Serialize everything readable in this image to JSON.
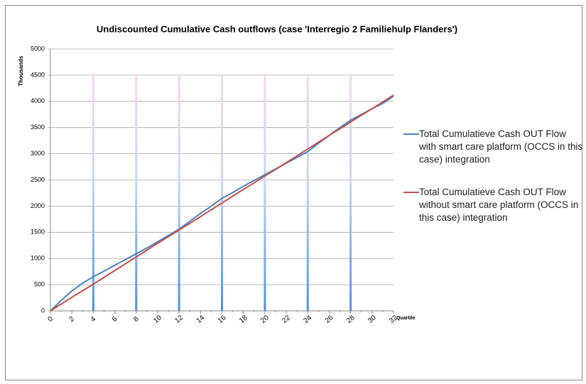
{
  "chart_data": {
    "type": "line",
    "title": "Undiscounted Cumulative Cash outflows (case 'Interregio 2 Familiehulp Flanders')",
    "y_label": "Thousands",
    "x_label": "Quartile",
    "x": [
      0,
      1,
      2,
      3,
      4,
      5,
      6,
      7,
      8,
      9,
      10,
      11,
      12,
      13,
      14,
      15,
      16,
      17,
      18,
      19,
      20,
      21,
      22,
      23,
      24,
      25,
      26,
      27,
      28,
      29,
      30,
      31,
      32
    ],
    "series": [
      {
        "name": "Total Cumulatieve Cash OUT Flow with smart care platform (OCCS in this case) integration",
        "color": "#4f81bd",
        "values": [
          0,
          200,
          380,
          530,
          650,
          760,
          870,
          980,
          1090,
          1200,
          1320,
          1440,
          1560,
          1710,
          1860,
          2000,
          2150,
          2260,
          2380,
          2490,
          2600,
          2710,
          2820,
          2930,
          3040,
          3200,
          3350,
          3500,
          3640,
          3750,
          3860,
          3960,
          4100
        ]
      },
      {
        "name": "Total Cumulatieve Cash OUT Flow without smart care platform (OCCS in this case) integration",
        "color": "#c0504d",
        "values": [
          0,
          130,
          260,
          385,
          510,
          640,
          770,
          900,
          1030,
          1160,
          1290,
          1415,
          1545,
          1670,
          1800,
          1930,
          2060,
          2190,
          2320,
          2445,
          2575,
          2700,
          2830,
          2960,
          3090,
          3220,
          3350,
          3475,
          3605,
          3735,
          3860,
          3990,
          4120
        ]
      }
    ],
    "columns": {
      "x": [
        4,
        8,
        12,
        16,
        20,
        24,
        28
      ],
      "values": [
        4500,
        4500,
        4500,
        4500,
        4500,
        4500,
        4500
      ]
    },
    "xlim": [
      0,
      32
    ],
    "xticks": [
      0,
      2,
      4,
      6,
      8,
      10,
      12,
      14,
      16,
      18,
      20,
      22,
      24,
      26,
      28,
      30,
      32
    ],
    "ylim": [
      0,
      5000
    ],
    "yticks": [
      0,
      500,
      1000,
      1500,
      2000,
      2500,
      3000,
      3500,
      4000,
      4500,
      5000
    ],
    "grid": true,
    "legend": "right"
  }
}
